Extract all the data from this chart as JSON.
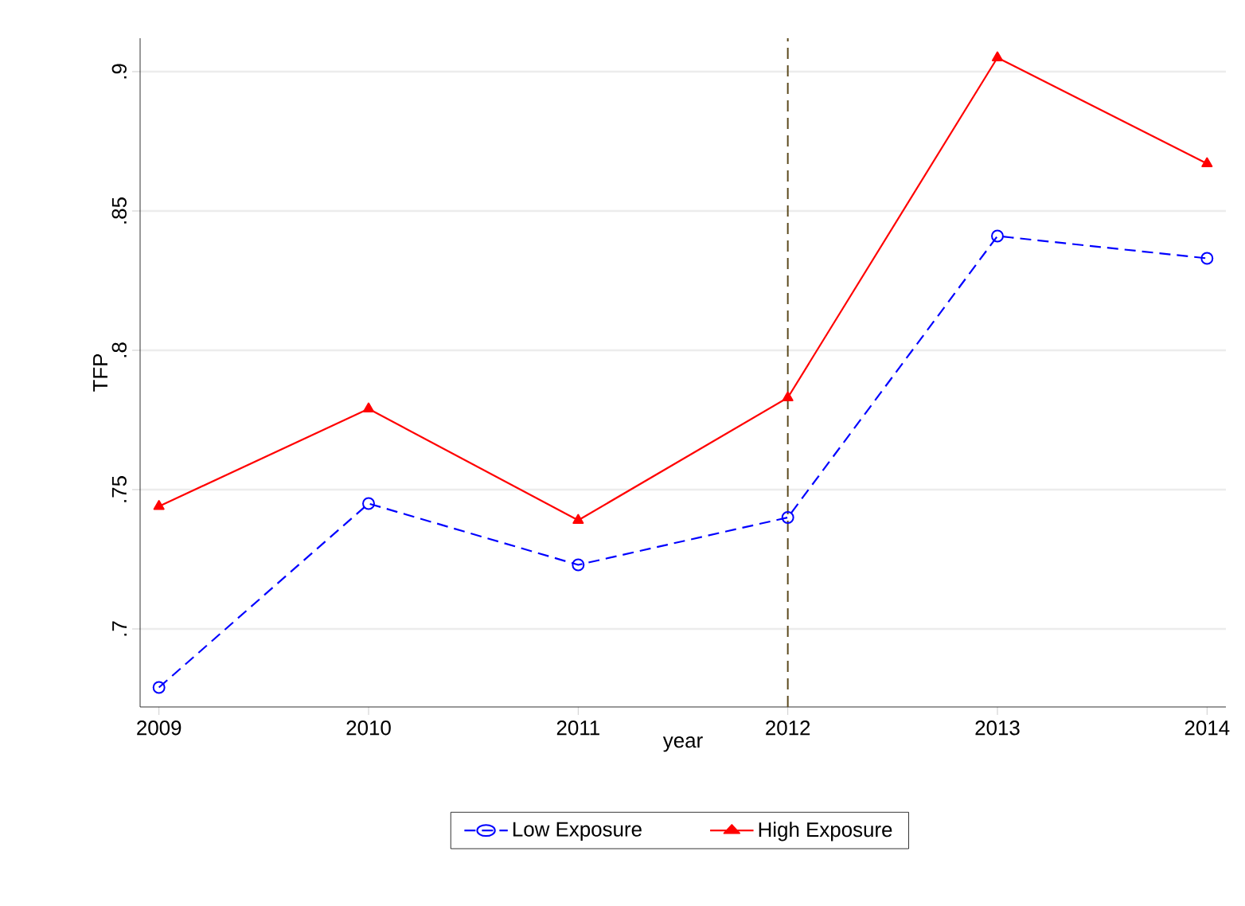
{
  "chart_data": {
    "type": "line",
    "xlabel": "year",
    "ylabel": "TFP",
    "x": [
      2009,
      2010,
      2011,
      2012,
      2013,
      2014
    ],
    "series": [
      {
        "name": "Low Exposure",
        "color": "#0000ff",
        "values": [
          0.679,
          0.745,
          0.723,
          0.74,
          0.841,
          0.833
        ],
        "marker": "circle",
        "line_style": "dashed"
      },
      {
        "name": "High Exposure",
        "color": "#ff0000",
        "values": [
          0.744,
          0.779,
          0.739,
          0.783,
          0.905,
          0.867
        ],
        "marker": "triangle",
        "line_style": "solid"
      }
    ],
    "xlim": [
      2008.91,
      2014.09
    ],
    "ylim": [
      0.672,
      0.912
    ],
    "xticks": [
      2009,
      2010,
      2011,
      2012,
      2013,
      2014
    ],
    "yticks": [
      {
        "value": 0.7,
        "label": ".7"
      },
      {
        "value": 0.75,
        "label": ".75"
      },
      {
        "value": 0.8,
        "label": ".8"
      },
      {
        "value": 0.85,
        "label": ".85"
      },
      {
        "value": 0.9,
        "label": ".9"
      }
    ],
    "ref_lines": [
      {
        "axis": "x",
        "value": 2012,
        "color": "#5c4a1e",
        "line_style": "dashed"
      }
    ],
    "grid": "y",
    "legend": "bottom"
  }
}
